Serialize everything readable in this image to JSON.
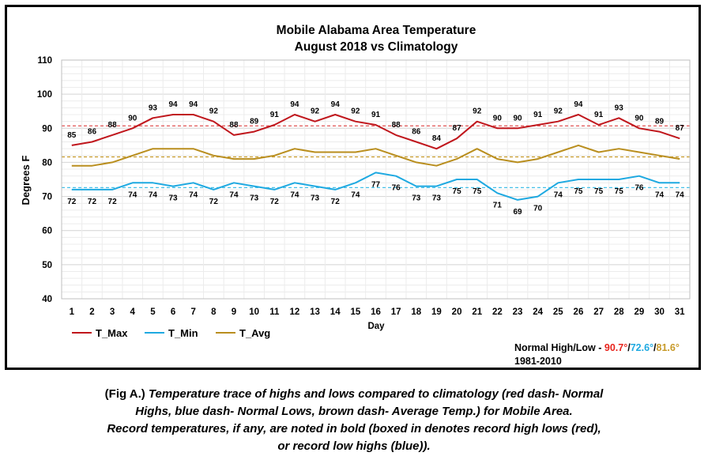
{
  "chart_data": {
    "type": "line",
    "title": "Mobile Alabama Area Temperature",
    "subtitle": "August 2018 vs Climatology",
    "xlabel": "Day",
    "ylabel": "Degrees F",
    "ylim": [
      40,
      110
    ],
    "yticks": [
      40,
      50,
      60,
      70,
      80,
      90,
      100,
      110
    ],
    "x": [
      1,
      2,
      3,
      4,
      5,
      6,
      7,
      8,
      9,
      10,
      11,
      12,
      13,
      14,
      15,
      16,
      17,
      18,
      19,
      20,
      21,
      22,
      23,
      24,
      25,
      26,
      27,
      28,
      29,
      30,
      31
    ],
    "grid": true,
    "legend_position": "bottom-left",
    "series": [
      {
        "name": "T_Max",
        "color": "#c0161c",
        "values": [
          85,
          86,
          88,
          90,
          93,
          94,
          94,
          92,
          88,
          89,
          91,
          94,
          92,
          94,
          92,
          91,
          88,
          86,
          84,
          87,
          92,
          90,
          90,
          91,
          92,
          94,
          91,
          93,
          90,
          89,
          87
        ]
      },
      {
        "name": "T_Min",
        "color": "#1ea9e1",
        "values": [
          72,
          72,
          72,
          74,
          74,
          73,
          74,
          72,
          74,
          73,
          72,
          74,
          73,
          72,
          74,
          77,
          76,
          73,
          73,
          75,
          75,
          71,
          69,
          70,
          74,
          75,
          75,
          75,
          76,
          74,
          74
        ]
      },
      {
        "name": "T_Avg",
        "color": "#b98e1e",
        "values": [
          79,
          79,
          80,
          82,
          84,
          84,
          84,
          82,
          81,
          81,
          82,
          84,
          83,
          83,
          83,
          84,
          82,
          80,
          79,
          81,
          84,
          81,
          80,
          81,
          83,
          85,
          83,
          84,
          83,
          82,
          81
        ]
      }
    ],
    "normals": [
      {
        "name": "Normal High",
        "value": 90.7,
        "color": "#e05252"
      },
      {
        "name": "Normal Low",
        "value": 72.6,
        "color": "#45c0e8"
      },
      {
        "name": "Average Temp",
        "value": 81.6,
        "color": "#c79a2a"
      }
    ]
  },
  "normals_box": {
    "label": "Normal High/Low - ",
    "high_text": "90.7°",
    "sep1": "/",
    "low_text": "72.6°",
    "sep2": "/",
    "avg_text": "81.6°",
    "period": "1981-2010"
  },
  "caption": {
    "fig_label": "(Fig A.)",
    "line1": " Temperature trace of highs and lows compared to climatology (red dash- Normal",
    "line2": "Highs, blue dash- Normal Lows, brown dash- Average Temp.) for Mobile Area.",
    "line3": "Record temperatures, if any, are noted in bold (boxed in denotes record high lows (red),",
    "line4": "or record low highs (blue))."
  }
}
